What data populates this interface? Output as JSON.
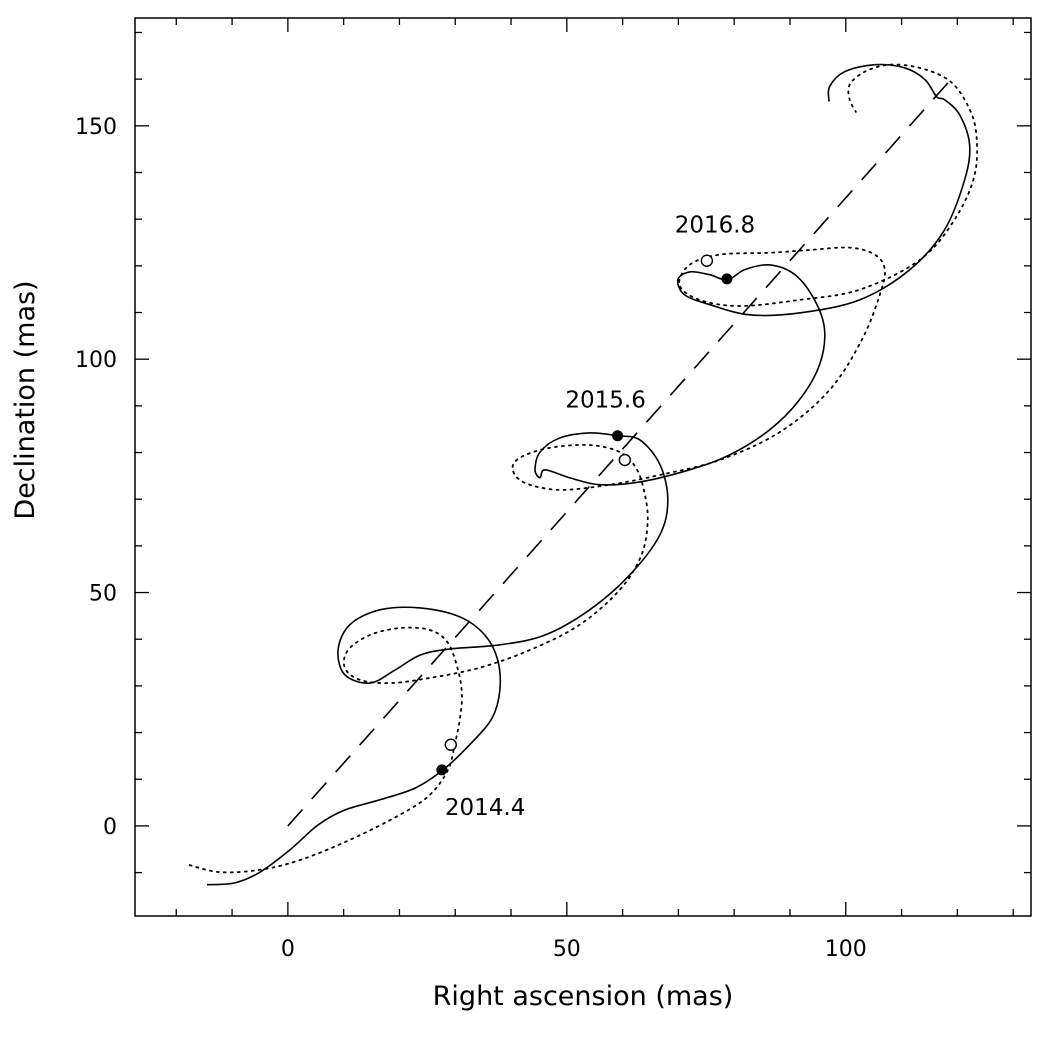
{
  "chart_data": {
    "type": "line",
    "title": "",
    "xlabel": "Right ascension (mas)",
    "ylabel": "Declination (mas)",
    "xlim": [
      -27.4,
      133.2
    ],
    "ylim": [
      -19.3,
      173.1
    ],
    "x_major_ticks": [
      0,
      50,
      100
    ],
    "x_tick_labels": [
      "0",
      "50",
      "100"
    ],
    "x_minor_step": 10,
    "y_major_ticks": [
      0,
      50,
      100,
      150
    ],
    "y_tick_labels": [
      "0",
      "50",
      "100",
      "150"
    ],
    "y_minor_step": 10,
    "grid": false,
    "series": [
      {
        "style": "solid",
        "points": [
          [
            -14.5,
            -12.6
          ],
          [
            -9.5,
            -12.2
          ],
          [
            -5.0,
            -9.9
          ],
          [
            0.4,
            -5.1
          ],
          [
            5.4,
            0.2
          ],
          [
            10.2,
            3.4
          ],
          [
            16.5,
            5.6
          ],
          [
            22.8,
            8.1
          ],
          [
            27.8,
            12.0
          ],
          [
            32.6,
            17.4
          ],
          [
            36.6,
            23.1
          ],
          [
            38.0,
            29.1
          ],
          [
            37.6,
            35.6
          ],
          [
            35.3,
            40.9
          ],
          [
            30.8,
            44.8
          ],
          [
            23.7,
            46.7
          ],
          [
            16.5,
            46.3
          ],
          [
            11.1,
            43.1
          ],
          [
            9.0,
            37.7
          ],
          [
            10.2,
            32.4
          ],
          [
            14.7,
            30.6
          ],
          [
            19.2,
            33.4
          ],
          [
            23.7,
            36.6
          ],
          [
            29.0,
            37.9
          ],
          [
            38.0,
            38.8
          ],
          [
            46.1,
            40.9
          ],
          [
            54.1,
            46.3
          ],
          [
            61.3,
            53.8
          ],
          [
            66.7,
            62.4
          ],
          [
            68.1,
            69.9
          ],
          [
            66.7,
            77.4
          ],
          [
            63.1,
            82.7
          ],
          [
            59.1,
            83.6
          ],
          [
            54.1,
            84.2
          ],
          [
            48.7,
            83.1
          ],
          [
            45.2,
            80.1
          ],
          [
            44.3,
            76.3
          ],
          [
            45.2,
            74.6
          ],
          [
            46.1,
            76.3
          ],
          [
            50.5,
            74.6
          ],
          [
            55.9,
            73.1
          ],
          [
            63.1,
            73.7
          ],
          [
            72.0,
            76.3
          ],
          [
            79.2,
            79.5
          ],
          [
            86.4,
            84.9
          ],
          [
            91.7,
            91.3
          ],
          [
            95.3,
            98.8
          ],
          [
            96.2,
            106.3
          ],
          [
            94.4,
            112.7
          ],
          [
            90.9,
            118.1
          ],
          [
            86.4,
            120.2
          ],
          [
            81.9,
            119.2
          ],
          [
            78.8,
            117.0
          ],
          [
            75.6,
            118.1
          ],
          [
            72.0,
            118.7
          ],
          [
            69.9,
            117.0
          ],
          [
            71.1,
            113.8
          ],
          [
            75.6,
            111.7
          ],
          [
            82.8,
            109.5
          ],
          [
            91.7,
            109.9
          ],
          [
            102.5,
            112.7
          ],
          [
            111.5,
            119.2
          ],
          [
            117.7,
            127.7
          ],
          [
            121.3,
            138.4
          ],
          [
            122.2,
            145.9
          ],
          [
            120.4,
            152.4
          ],
          [
            117.7,
            155.6
          ],
          [
            116.3,
            156.2
          ],
          [
            114.2,
            159.9
          ],
          [
            110.6,
            162.4
          ],
          [
            105.2,
            163.1
          ],
          [
            99.8,
            161.6
          ],
          [
            97.1,
            158.4
          ],
          [
            97.0,
            155.2
          ]
        ]
      },
      {
        "style": "dotted",
        "points": [
          [
            -17.6,
            -8.4
          ],
          [
            -12.2,
            -9.9
          ],
          [
            -5.0,
            -9.4
          ],
          [
            2.2,
            -7.3
          ],
          [
            11.1,
            -3.0
          ],
          [
            20.1,
            2.4
          ],
          [
            25.4,
            6.6
          ],
          [
            28.7,
            12.0
          ],
          [
            29.9,
            17.4
          ],
          [
            30.8,
            22.7
          ],
          [
            31.2,
            28.1
          ],
          [
            30.5,
            33.4
          ],
          [
            28.7,
            39.2
          ],
          [
            25.4,
            42.0
          ],
          [
            20.1,
            42.4
          ],
          [
            14.7,
            40.9
          ],
          [
            10.8,
            37.7
          ],
          [
            10.2,
            33.9
          ],
          [
            12.9,
            31.3
          ],
          [
            18.3,
            30.6
          ],
          [
            25.4,
            31.7
          ],
          [
            34.4,
            33.9
          ],
          [
            43.4,
            37.7
          ],
          [
            52.3,
            43.1
          ],
          [
            59.5,
            50.6
          ],
          [
            63.4,
            58.1
          ],
          [
            64.5,
            65.6
          ],
          [
            63.8,
            72.0
          ],
          [
            62.4,
            76.7
          ],
          [
            59.5,
            80.1
          ],
          [
            54.1,
            81.6
          ],
          [
            46.9,
            81.0
          ],
          [
            41.6,
            78.9
          ],
          [
            40.3,
            76.3
          ],
          [
            42.5,
            73.5
          ],
          [
            48.7,
            72.0
          ],
          [
            57.7,
            73.1
          ],
          [
            66.7,
            75.2
          ],
          [
            77.4,
            78.4
          ],
          [
            88.2,
            84.4
          ],
          [
            97.1,
            93.4
          ],
          [
            102.9,
            104.2
          ],
          [
            106.1,
            113.8
          ],
          [
            107.0,
            119.2
          ],
          [
            105.2,
            122.4
          ],
          [
            100.7,
            123.9
          ],
          [
            93.5,
            123.4
          ],
          [
            86.4,
            122.8
          ],
          [
            77.4,
            122.4
          ],
          [
            72.0,
            120.2
          ],
          [
            70.2,
            115.9
          ],
          [
            73.8,
            112.7
          ],
          [
            81.0,
            111.4
          ],
          [
            91.7,
            112.7
          ],
          [
            102.5,
            114.9
          ],
          [
            113.3,
            121.3
          ],
          [
            119.5,
            129.9
          ],
          [
            123.1,
            139.5
          ],
          [
            123.3,
            149.2
          ],
          [
            121.3,
            155.6
          ],
          [
            118.3,
            159.9
          ],
          [
            113.3,
            162.4
          ],
          [
            107.9,
            163.1
          ],
          [
            103.4,
            161.6
          ],
          [
            100.7,
            158.8
          ],
          [
            100.7,
            155.6
          ],
          [
            101.8,
            153.0
          ]
        ]
      },
      {
        "style": "dashed",
        "points": [
          [
            0,
            0
          ],
          [
            118.3,
            159.2
          ]
        ]
      }
    ],
    "markers": [
      {
        "label": "2014.4",
        "filled": [
          27.6,
          12.0
        ],
        "open": [
          29.2,
          17.4
        ],
        "label_pos": "below-right"
      },
      {
        "label": "2015.6",
        "filled": [
          59.1,
          83.6
        ],
        "open": [
          60.4,
          78.4
        ],
        "label_pos": "above-left"
      },
      {
        "label": "2016.8",
        "filled": [
          78.7,
          117.2
        ],
        "open": [
          75.1,
          121.1
        ],
        "label_pos": "above-left"
      }
    ]
  }
}
